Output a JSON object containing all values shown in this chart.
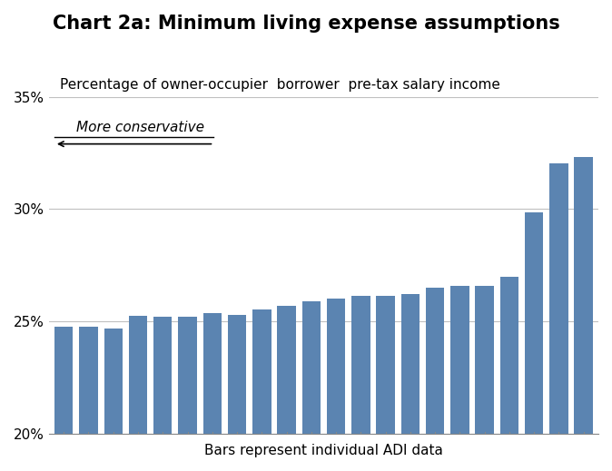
{
  "title": "Chart 2a: Minimum living expense assumptions",
  "subtitle": "Percentage of owner-occupier  borrower  pre-tax salary income",
  "xlabel": "Bars represent individual ADI data",
  "bar_color": "#5b84b1",
  "annotation_text": "More conservative",
  "ylim": [
    0.2,
    0.35
  ],
  "yticks": [
    0.2,
    0.25,
    0.3,
    0.35
  ],
  "ytick_labels": [
    "20%",
    "25%",
    "30%",
    "35%"
  ],
  "values": [
    0.2475,
    0.2475,
    0.247,
    0.2525,
    0.252,
    0.252,
    0.2535,
    0.253,
    0.2555,
    0.257,
    0.259,
    0.26,
    0.2615,
    0.2615,
    0.262,
    0.265,
    0.266,
    0.266,
    0.27,
    0.2985,
    0.3205,
    0.323
  ],
  "title_fontsize": 15,
  "subtitle_fontsize": 11,
  "xlabel_fontsize": 11,
  "annotation_fontsize": 11,
  "background_color": "#ffffff",
  "grid_color": "#c0c0c0"
}
